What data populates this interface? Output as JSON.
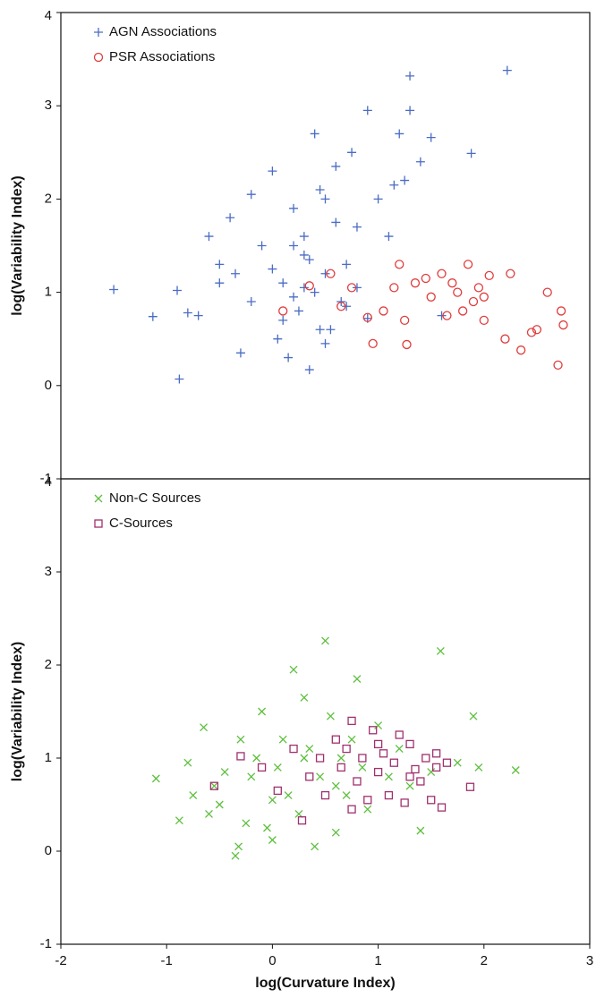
{
  "chart_data": [
    {
      "type": "scatter",
      "ylabel": "log(Variability Index)",
      "xlim": [
        -2,
        3
      ],
      "ylim": [
        -1,
        4
      ],
      "yticks": [
        -1,
        0,
        1,
        2,
        3,
        4
      ],
      "legend": "upper left",
      "series": [
        {
          "name": "AGN Associations",
          "color": "#4a6cc4",
          "marker": "plus",
          "x": [
            -1.5,
            -1.13,
            -0.88,
            -0.9,
            -0.8,
            -0.7,
            -0.6,
            -0.5,
            -0.4,
            -0.35,
            -0.3,
            -0.2,
            -0.1,
            0,
            0.05,
            0.1,
            0.15,
            0.2,
            0.25,
            0.3,
            0.35,
            0.4,
            0.45,
            0.5,
            0.55,
            0.6,
            0.65,
            0.7,
            0.75,
            0.8,
            0.9,
            1.0,
            1.1,
            1.2,
            1.3,
            1.4,
            1.5,
            1.6,
            1.88,
            2.22,
            -0.2,
            0.1,
            0.3,
            0.5,
            0.0,
            0.2,
            0.4,
            0.6,
            0.8,
            -0.5,
            0.3,
            0.7,
            0.5,
            1.25,
            1.3,
            0.9,
            1.15,
            0.35,
            0.45,
            0.2
          ],
          "values": [
            1.03,
            0.74,
            0.07,
            1.02,
            0.78,
            0.75,
            1.6,
            1.3,
            1.8,
            1.2,
            0.35,
            0.9,
            1.5,
            2.3,
            0.5,
            1.1,
            0.3,
            1.9,
            0.8,
            1.4,
            0.17,
            1.0,
            2.1,
            1.2,
            0.6,
            1.75,
            0.9,
            1.3,
            2.5,
            1.05,
            2.95,
            2.0,
            1.6,
            2.7,
            3.32,
            2.4,
            2.66,
            0.75,
            2.49,
            3.38,
            2.05,
            0.7,
            1.6,
            0.45,
            1.25,
            0.95,
            2.7,
            2.35,
            1.7,
            1.1,
            1.05,
            0.85,
            2.0,
            2.2,
            2.95,
            0.72,
            2.15,
            1.35,
            0.6,
            1.5
          ]
        },
        {
          "name": "PSR Associations",
          "color": "#e03c3c",
          "marker": "circle",
          "x": [
            0.1,
            0.35,
            0.55,
            0.65,
            0.75,
            0.9,
            0.95,
            1.05,
            1.15,
            1.2,
            1.25,
            1.27,
            1.35,
            1.45,
            1.5,
            1.6,
            1.65,
            1.7,
            1.75,
            1.8,
            1.85,
            1.95,
            2.0,
            2.05,
            2.2,
            2.25,
            2.35,
            2.45,
            2.5,
            2.7,
            2.6,
            2.73,
            2.75,
            1.9,
            2.0
          ],
          "values": [
            0.8,
            1.07,
            1.2,
            0.85,
            1.05,
            0.73,
            0.45,
            0.8,
            1.05,
            1.3,
            0.7,
            0.44,
            1.1,
            1.15,
            0.95,
            1.2,
            0.75,
            1.1,
            1.0,
            0.8,
            1.3,
            1.05,
            0.95,
            1.18,
            0.5,
            1.2,
            0.38,
            0.57,
            0.6,
            0.22,
            1.0,
            0.8,
            0.65,
            0.9,
            0.7
          ]
        }
      ]
    },
    {
      "type": "scatter",
      "ylabel": "log(Variability Index)",
      "xlabel": "log(Curvature Index)",
      "xlim": [
        -2,
        3
      ],
      "xticks": [
        -2,
        -1,
        0,
        1,
        2,
        3
      ],
      "ylim": [
        -1,
        4
      ],
      "yticks": [
        -1,
        0,
        1,
        2,
        3,
        4
      ],
      "legend": "upper left",
      "series": [
        {
          "name": "Non-C Sources",
          "color": "#5cbf3c",
          "marker": "cross",
          "x": [
            -1.1,
            -0.88,
            -0.8,
            -0.75,
            -0.65,
            -0.6,
            -0.55,
            -0.5,
            -0.45,
            -0.35,
            -0.32,
            -0.3,
            -0.25,
            -0.2,
            -0.15,
            -0.1,
            -0.05,
            0,
            0.05,
            0.1,
            0.15,
            0.2,
            0.25,
            0.3,
            0.35,
            0.4,
            0.45,
            0.5,
            0.55,
            0.6,
            0.65,
            0.7,
            0.75,
            0.8,
            0.85,
            0.9,
            1.0,
            1.1,
            1.2,
            1.3,
            1.4,
            1.5,
            1.59,
            1.75,
            1.9,
            1.95,
            2.3,
            0.0,
            0.3,
            0.6
          ],
          "values": [
            0.78,
            0.33,
            0.95,
            0.6,
            1.33,
            0.4,
            0.7,
            0.5,
            0.85,
            -0.05,
            0.05,
            1.2,
            0.3,
            0.8,
            1.0,
            1.5,
            0.25,
            0.12,
            0.9,
            1.2,
            0.6,
            1.95,
            0.4,
            1.0,
            1.1,
            0.05,
            0.8,
            2.26,
            1.45,
            0.7,
            1.0,
            0.6,
            1.2,
            1.85,
            0.9,
            0.45,
            1.35,
            0.8,
            1.1,
            0.7,
            0.22,
            0.85,
            2.15,
            0.95,
            1.45,
            0.9,
            0.87,
            0.55,
            1.65,
            0.2
          ]
        },
        {
          "name": "C-Sources",
          "color": "#a0306e",
          "marker": "square",
          "x": [
            -0.55,
            -0.3,
            -0.1,
            0.05,
            0.2,
            0.28,
            0.35,
            0.45,
            0.5,
            0.6,
            0.65,
            0.7,
            0.75,
            0.8,
            0.85,
            0.9,
            0.95,
            1.0,
            1.05,
            1.1,
            1.15,
            1.2,
            1.25,
            1.3,
            1.35,
            1.4,
            1.45,
            1.5,
            1.55,
            1.6,
            1.65,
            1.87,
            0.75,
            1.0,
            1.3,
            1.55
          ],
          "values": [
            0.7,
            1.02,
            0.9,
            0.65,
            1.1,
            0.33,
            0.8,
            1.0,
            0.6,
            1.2,
            0.9,
            1.1,
            1.4,
            0.75,
            1.0,
            0.55,
            1.3,
            0.85,
            1.05,
            0.6,
            0.95,
            1.25,
            0.52,
            1.15,
            0.88,
            0.75,
            1.0,
            0.55,
            0.9,
            0.47,
            0.95,
            0.69,
            0.45,
            1.15,
            0.8,
            1.05
          ]
        }
      ]
    }
  ]
}
